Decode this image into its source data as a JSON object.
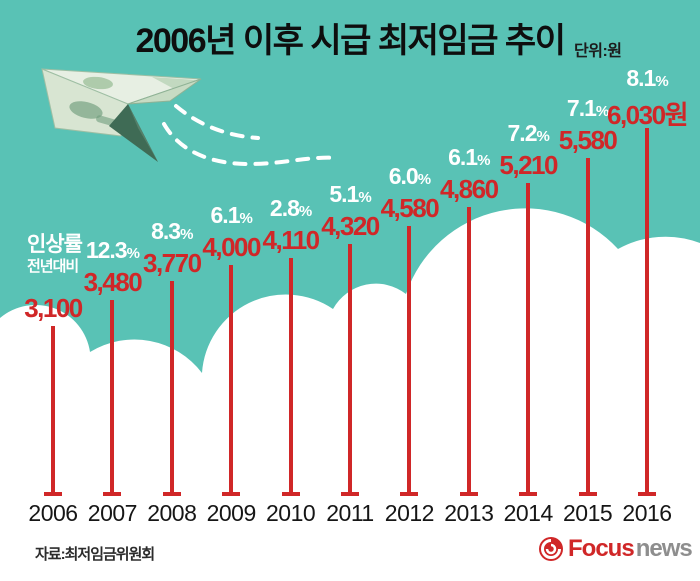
{
  "title": "2006년 이후 시급 최저임금 추이",
  "unit_label": "단위:원",
  "rate_label": {
    "line1": "인상률",
    "line2": "전년대비"
  },
  "source": "자료:최저임금위원회",
  "logo": {
    "brand": "Focus",
    "suffix": "news"
  },
  "colors": {
    "background_teal": "#59c2b5",
    "accent_red": "#d02728",
    "cloud_white": "#ffffff",
    "title_black": "#0e0e0e",
    "news_gray": "#8e8e8e"
  },
  "chart_data": {
    "type": "bar",
    "variant": "lollipop-pictograph",
    "title": "2006년 이후 시급 최저임금 추이",
    "unit": "원",
    "categories": [
      "2006",
      "2007",
      "2008",
      "2009",
      "2010",
      "2011",
      "2012",
      "2013",
      "2014",
      "2015",
      "2016"
    ],
    "values": [
      3100,
      3480,
      3770,
      4000,
      4110,
      4320,
      4580,
      4860,
      5210,
      5580,
      6030
    ],
    "value_labels": [
      "3,100",
      "3,480",
      "3,770",
      "4,000",
      "4,110",
      "4,320",
      "4,580",
      "4,860",
      "5,210",
      "5,580",
      "6,030원"
    ],
    "increase_rates": [
      null,
      "12.3%",
      "8.3%",
      "6.1%",
      "2.8%",
      "5.1%",
      "6.0%",
      "6.1%",
      "7.2%",
      "7.1%",
      "8.1%"
    ],
    "increase_rate_legend": "인상률 전년대비",
    "xlabel": "",
    "ylabel": "",
    "ylim": [
      3100,
      6030
    ],
    "grid": false,
    "legend_position": "left"
  }
}
